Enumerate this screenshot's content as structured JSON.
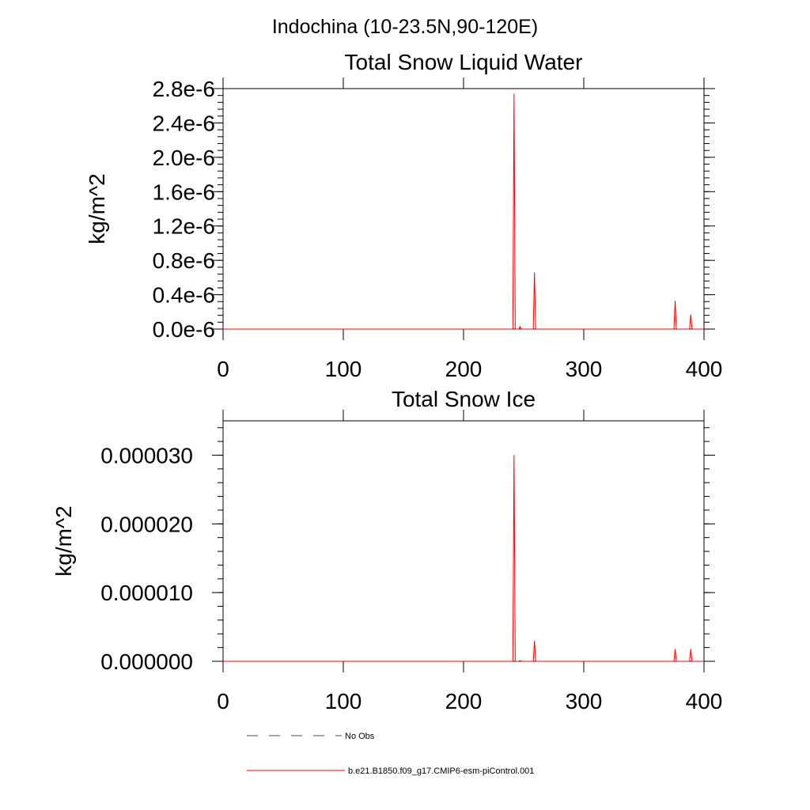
{
  "figure": {
    "title": "Indochina (10-23.5N,90-120E)"
  },
  "chart_data": [
    {
      "type": "line",
      "title": "Total Snow Liquid Water",
      "xlabel": "",
      "ylabel": "kg/m^2",
      "xlim": [
        0,
        400
      ],
      "ylim": [
        0,
        2.8e-06
      ],
      "x_ticks": [
        0,
        100,
        200,
        300,
        400
      ],
      "x_tick_labels": [
        "0",
        "100",
        "200",
        "300",
        "400"
      ],
      "y_ticks": [
        0,
        4e-07,
        8e-07,
        1.2e-06,
        1.6e-06,
        2e-06,
        2.4e-06,
        2.8e-06
      ],
      "y_tick_labels": [
        "0.0e-6",
        "0.4e-6",
        "0.8e-6",
        "1.2e-6",
        "1.6e-6",
        "2.0e-6",
        "2.4e-6",
        "2.8e-6"
      ],
      "grid": false,
      "series": [
        {
          "name": "b.e21.B1850.f09_g17.CMIP6-esm-piControl.001",
          "color": "#ff0000",
          "x": [
            0,
            240,
            241,
            242,
            243,
            246,
            247,
            248,
            257,
            258,
            259,
            260,
            375,
            376,
            377,
            388,
            389,
            390,
            400
          ],
          "y": [
            0,
            0,
            0,
            2.74e-06,
            0,
            0,
            3e-08,
            0,
            0,
            0,
            6.6e-07,
            0,
            0,
            3.3e-07,
            0,
            0,
            1.7e-07,
            0,
            0
          ]
        }
      ]
    },
    {
      "type": "line",
      "title": "Total Snow Ice",
      "xlabel": "",
      "ylabel": "kg/m^2",
      "xlim": [
        0,
        400
      ],
      "ylim": [
        0,
        3.5e-05
      ],
      "x_ticks": [
        0,
        100,
        200,
        300,
        400
      ],
      "x_tick_labels": [
        "0",
        "100",
        "200",
        "300",
        "400"
      ],
      "y_ticks": [
        0,
        1e-05,
        2e-05,
        3e-05
      ],
      "y_tick_labels": [
        "0.000000",
        "0.000010",
        "0.000020",
        "0.000030"
      ],
      "grid": false,
      "series": [
        {
          "name": "b.e21.B1850.f09_g17.CMIP6-esm-piControl.001",
          "color": "#ff0000",
          "x": [
            0,
            240,
            241,
            242,
            243,
            246,
            247,
            248,
            257,
            258,
            259,
            260,
            375,
            376,
            377,
            388,
            389,
            390,
            400
          ],
          "y": [
            0,
            0,
            0,
            3e-05,
            0,
            0,
            1e-07,
            0,
            0,
            0,
            3e-06,
            0,
            0,
            1.8e-06,
            0,
            0,
            1.8e-06,
            0,
            0
          ]
        }
      ]
    }
  ],
  "legend": {
    "items": [
      {
        "label": "No Obs",
        "style": "dashed",
        "color": "#4a4a6a"
      },
      {
        "label": "b.e21.B1850.f09_g17.CMIP6-esm-piControl.001",
        "style": "solid",
        "color": "#ff0000"
      }
    ]
  }
}
